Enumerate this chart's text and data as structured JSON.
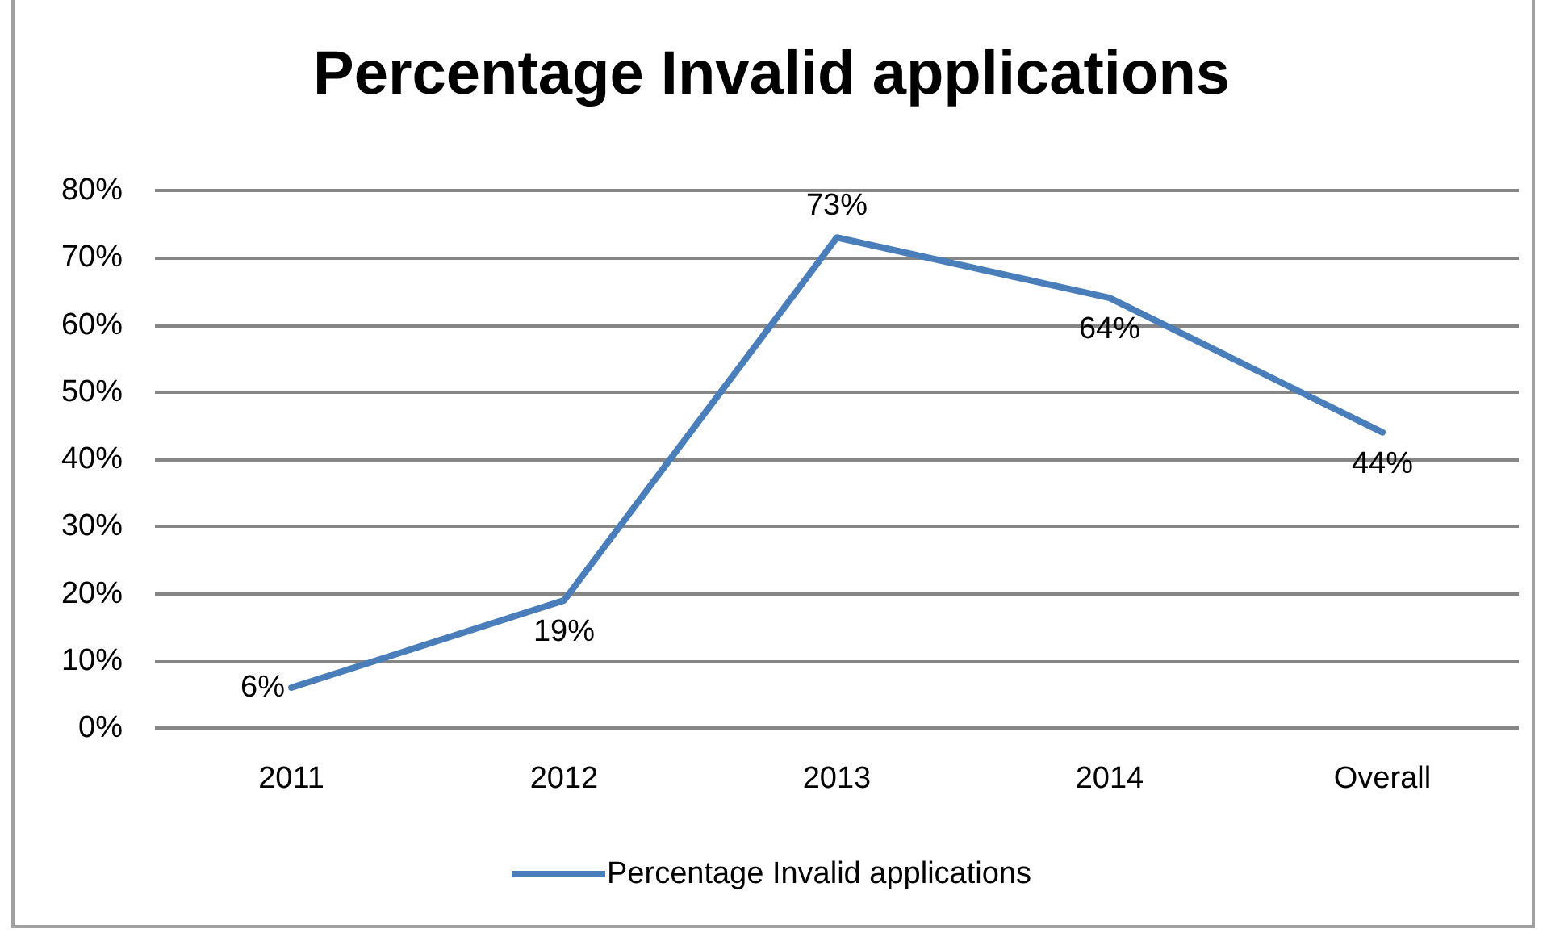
{
  "chart_data": {
    "type": "line",
    "title": "Percentage Invalid applications",
    "categories": [
      "2011",
      "2012",
      "2013",
      "2014",
      "Overall"
    ],
    "series": [
      {
        "name": "Percentage Invalid applications",
        "color": "#4a7ebb",
        "values": [
          6,
          19,
          73,
          64,
          44
        ],
        "value_labels": [
          "6%",
          "19%",
          "73%",
          "64%",
          "44%"
        ]
      }
    ],
    "ylim": [
      0,
      80
    ],
    "yticks": [
      {
        "value": 0,
        "label": "0%"
      },
      {
        "value": 10,
        "label": "10%"
      },
      {
        "value": 20,
        "label": "20%"
      },
      {
        "value": 30,
        "label": "30%"
      },
      {
        "value": 40,
        "label": "40%"
      },
      {
        "value": 50,
        "label": "50%"
      },
      {
        "value": 60,
        "label": "60%"
      },
      {
        "value": 70,
        "label": "70%"
      },
      {
        "value": 80,
        "label": "80%"
      }
    ],
    "grid": "y",
    "legend": "bottom",
    "marker": "none",
    "line_style": "solid"
  }
}
